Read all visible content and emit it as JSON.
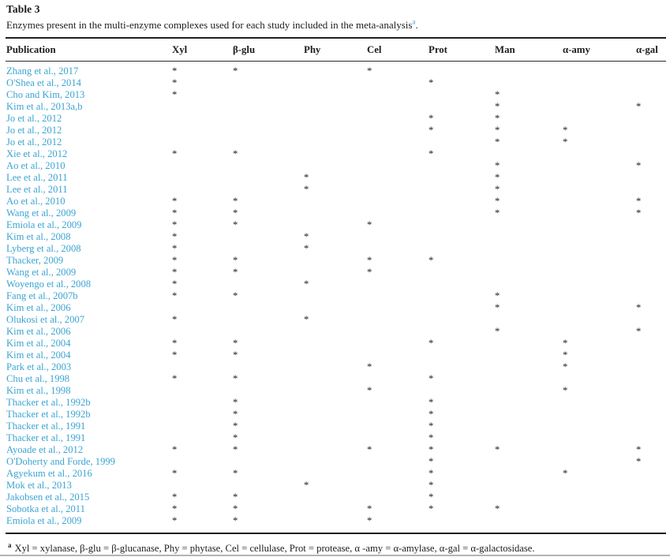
{
  "title": "Table 3",
  "caption": {
    "text": "Enzymes present in the multi-enzyme complexes used for each study included in the meta-analysis",
    "footnote_marker": "a",
    "suffix": "."
  },
  "table": {
    "columns": [
      "Publication",
      "Xyl",
      "β-glu",
      "Phy",
      "Cel",
      "Prot",
      "Man",
      "α-amy",
      "α-gal"
    ],
    "mark": "*",
    "rows": [
      {
        "publication": "Zhang et al., 2017",
        "enzymes": [
          "Xyl",
          "β-glu",
          "Cel"
        ]
      },
      {
        "publication": "O'Shea et al., 2014",
        "enzymes": [
          "Xyl",
          "Prot"
        ]
      },
      {
        "publication": "Cho and Kim, 2013",
        "enzymes": [
          "Xyl",
          "Man"
        ]
      },
      {
        "publication": "Kim et al., 2013a,b",
        "enzymes": [
          "Man",
          "α-gal"
        ]
      },
      {
        "publication": "Jo et al., 2012",
        "enzymes": [
          "Prot",
          "Man"
        ]
      },
      {
        "publication": "Jo et al., 2012",
        "enzymes": [
          "Prot",
          "Man",
          "α-amy"
        ]
      },
      {
        "publication": "Jo et al., 2012",
        "enzymes": [
          "Man",
          "α-amy"
        ]
      },
      {
        "publication": "Xie et al., 2012",
        "enzymes": [
          "Xyl",
          "β-glu",
          "Prot"
        ]
      },
      {
        "publication": "Ao et al., 2010",
        "enzymes": [
          "Man",
          "α-gal"
        ]
      },
      {
        "publication": "Lee et al., 2011",
        "enzymes": [
          "Phy",
          "Man"
        ]
      },
      {
        "publication": "Lee et al., 2011",
        "enzymes": [
          "Phy",
          "Man"
        ]
      },
      {
        "publication": "Ao et al., 2010",
        "enzymes": [
          "Xyl",
          "β-glu",
          "Man",
          "α-gal"
        ]
      },
      {
        "publication": "Wang et al., 2009",
        "enzymes": [
          "Xyl",
          "β-glu",
          "Man",
          "α-gal"
        ]
      },
      {
        "publication": "Emiola et al., 2009",
        "enzymes": [
          "Xyl",
          "β-glu",
          "Cel"
        ]
      },
      {
        "publication": "Kim et al., 2008",
        "enzymes": [
          "Xyl",
          "Phy"
        ]
      },
      {
        "publication": "Lyberg et al., 2008",
        "enzymes": [
          "Xyl",
          "Phy"
        ]
      },
      {
        "publication": "Thacker, 2009",
        "enzymes": [
          "Xyl",
          "β-glu",
          "Cel",
          "Prot"
        ]
      },
      {
        "publication": "Wang et al., 2009",
        "enzymes": [
          "Xyl",
          "β-glu",
          "Cel"
        ]
      },
      {
        "publication": "Woyengo et al., 2008",
        "enzymes": [
          "Xyl",
          "Phy"
        ]
      },
      {
        "publication": "Fang et al., 2007b",
        "enzymes": [
          "Xyl",
          "β-glu",
          "Man"
        ]
      },
      {
        "publication": "Kim et al., 2006",
        "enzymes": [
          "Man",
          "α-gal"
        ]
      },
      {
        "publication": "Olukosi et al., 2007",
        "enzymes": [
          "Xyl",
          "Phy"
        ]
      },
      {
        "publication": "Kim et al., 2006",
        "enzymes": [
          "Man",
          "α-gal"
        ]
      },
      {
        "publication": "Kim et al., 2004",
        "enzymes": [
          "Xyl",
          "β-glu",
          "Prot",
          "α-amy"
        ]
      },
      {
        "publication": "Kim et al., 2004",
        "enzymes": [
          "Xyl",
          "β-glu",
          "α-amy"
        ]
      },
      {
        "publication": "Park et al., 2003",
        "enzymes": [
          "Cel",
          "α-amy"
        ]
      },
      {
        "publication": "Chu et al., 1998",
        "enzymes": [
          "Xyl",
          "β-glu",
          "Prot"
        ]
      },
      {
        "publication": "Kim et al., 1998",
        "enzymes": [
          "Cel",
          "α-amy"
        ]
      },
      {
        "publication": "Thacker et al., 1992b",
        "enzymes": [
          "β-glu",
          "Prot"
        ]
      },
      {
        "publication": "Thacker et al., 1992b",
        "enzymes": [
          "β-glu",
          "Prot"
        ]
      },
      {
        "publication": "Thacker et al., 1991",
        "enzymes": [
          "β-glu",
          "Prot"
        ]
      },
      {
        "publication": "Thacker et al., 1991",
        "enzymes": [
          "β-glu",
          "Prot"
        ]
      },
      {
        "publication": "Ayoade et al., 2012",
        "enzymes": [
          "Xyl",
          "β-glu",
          "Cel",
          "Prot",
          "Man",
          "α-gal"
        ]
      },
      {
        "publication": "O'Doherty and Forde, 1999",
        "enzymes": [
          "Prot",
          "α-gal"
        ]
      },
      {
        "publication": "Agyekum et al., 2016",
        "enzymes": [
          "Xyl",
          "β-glu",
          "Prot",
          "α-amy"
        ]
      },
      {
        "publication": "Mok et al., 2013",
        "enzymes": [
          "Phy",
          "Prot"
        ]
      },
      {
        "publication": "Jakobsen et al., 2015",
        "enzymes": [
          "Xyl",
          "β-glu",
          "Prot"
        ]
      },
      {
        "publication": "Sobotka et al., 2011",
        "enzymes": [
          "Xyl",
          "β-glu",
          "Cel",
          "Prot",
          "Man"
        ]
      },
      {
        "publication": "Emiola et al., 2009",
        "enzymes": [
          "Xyl",
          "β-glu",
          "Cel"
        ]
      }
    ]
  },
  "footnote": {
    "marker": "a",
    "text": "Xyl = xylanase, β-glu = β-glucanase, Phy = phytase, Cel = cellulase, Prot = protease, α -amy = α-amylase, α-gal = α-galactosidase."
  },
  "colors": {
    "link_blue": "#3ba4d3",
    "text": "#1c1c1c",
    "rule_dark": "#1f1f1f",
    "bottom_grey": "#b3b3b3"
  }
}
